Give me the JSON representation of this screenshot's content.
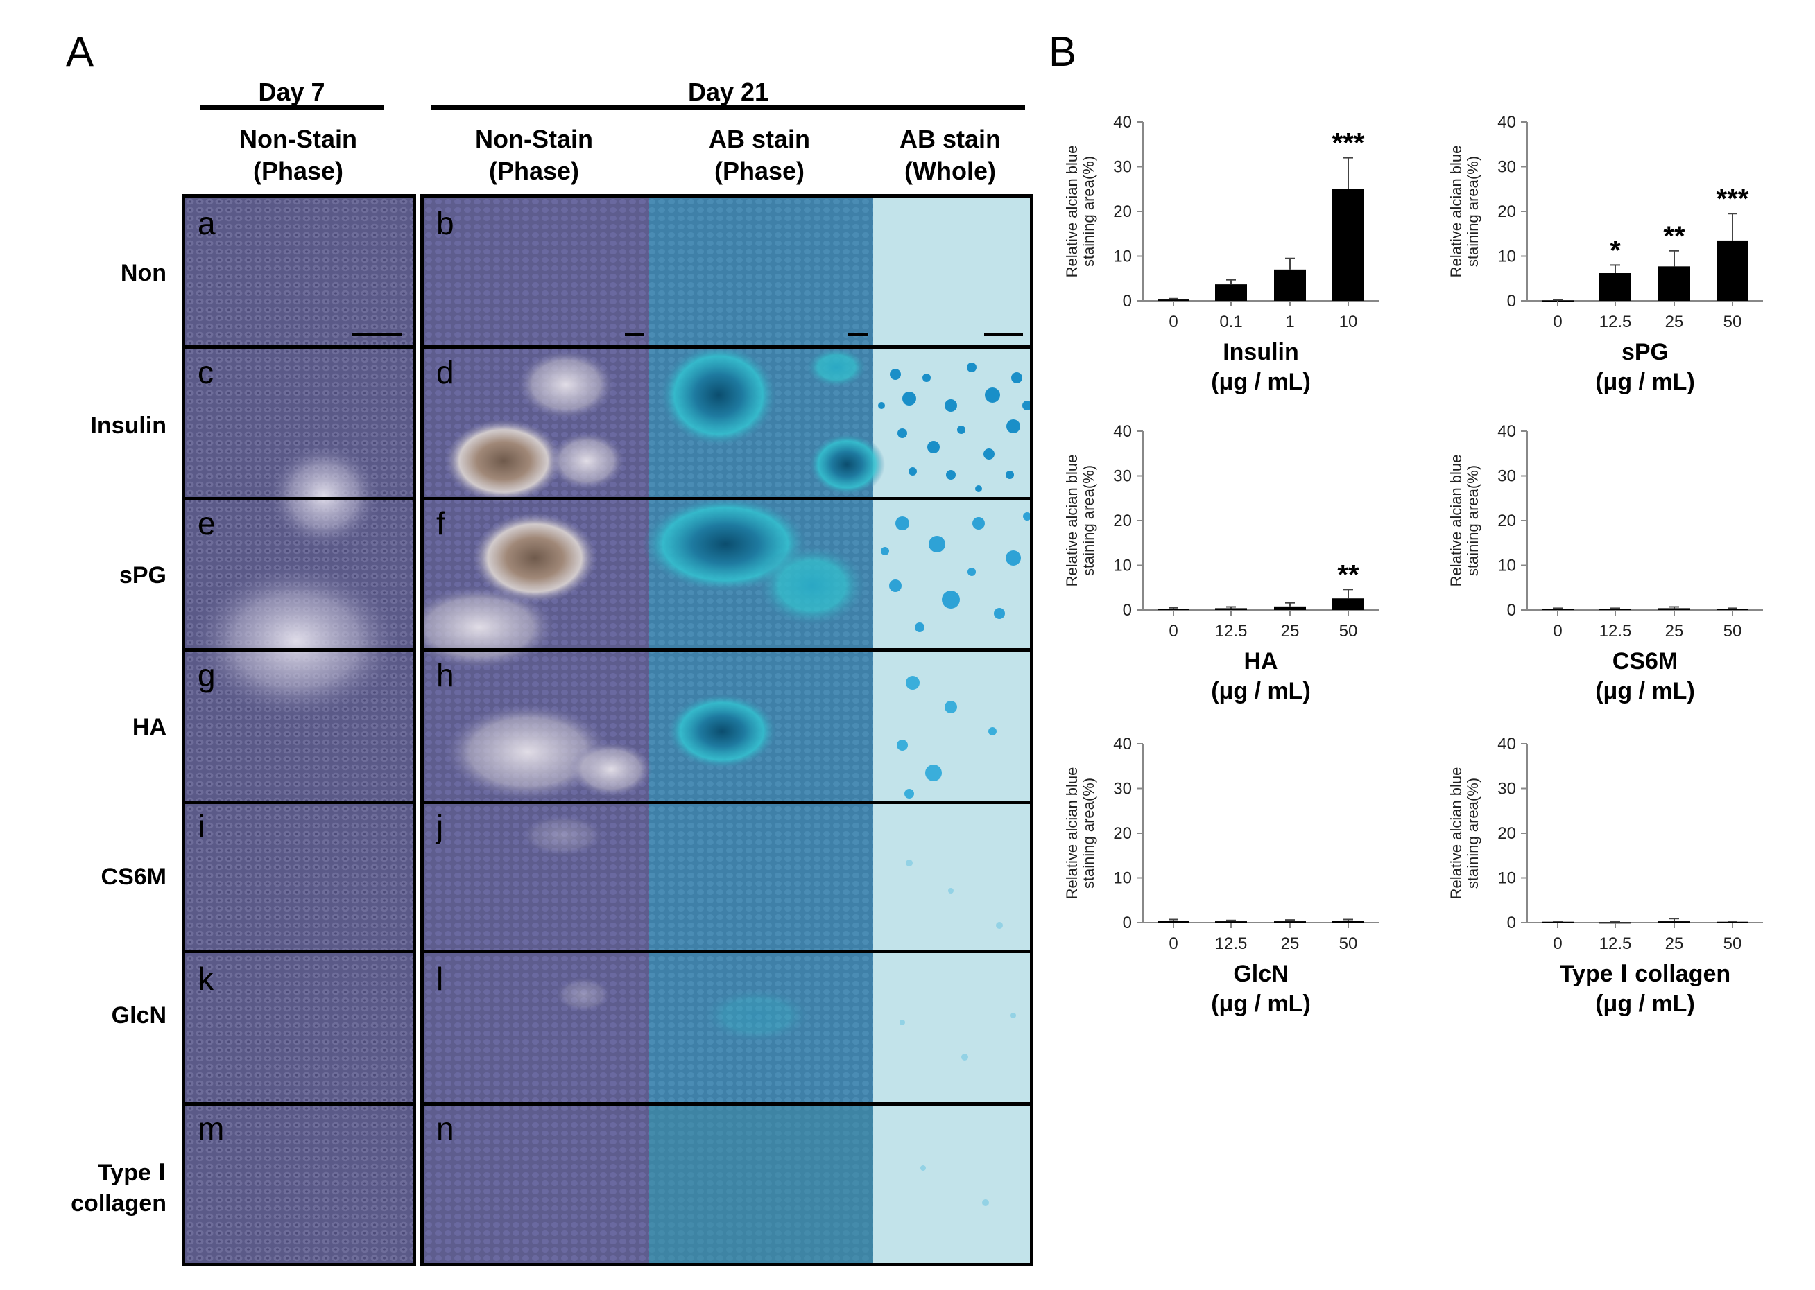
{
  "panel_a": {
    "letter": "A",
    "day7_header": "Day 7",
    "day21_header": "Day 21",
    "col_headers": [
      {
        "line1": "Non-Stain",
        "line2": "(Phase)"
      },
      {
        "line1": "Non-Stain",
        "line2": "(Phase)"
      },
      {
        "line1": "AB stain",
        "line2": "(Phase)"
      },
      {
        "line1": "AB stain",
        "line2": "(Whole)"
      }
    ],
    "rows": [
      {
        "label": "Non",
        "left_letter": "a",
        "right_letter": "b"
      },
      {
        "label": "Insulin",
        "left_letter": "c",
        "right_letter": "d"
      },
      {
        "label": "sPG",
        "left_letter": "e",
        "right_letter": "f"
      },
      {
        "label": "HA",
        "left_letter": "g",
        "right_letter": "h"
      },
      {
        "label": "CS6M",
        "left_letter": "i",
        "right_letter": "j"
      },
      {
        "label": "GlcN",
        "left_letter": "k",
        "right_letter": "l"
      },
      {
        "label": "Type Ⅰ",
        "label2": "collagen",
        "left_letter": "m",
        "right_letter": "n"
      }
    ],
    "colors": {
      "phase": "#5e5d8c",
      "ab_phase": "#3d7fa6",
      "ab_whole": "#bfe3ea",
      "blue_spot": "#1a8fc8",
      "light_spot": "#d8d4df",
      "brown_spot": "#7a6555"
    }
  },
  "panel_b": {
    "letter": "B"
  },
  "chart_data": [
    {
      "type": "bar",
      "categories": [
        "0",
        "0.1",
        "1",
        "10"
      ],
      "values": [
        0.3,
        3.7,
        7.0,
        25.0
      ],
      "errors": [
        0.2,
        1.0,
        2.5,
        7.0
      ],
      "significance": [
        "",
        "",
        "",
        "***"
      ],
      "xlabel": "Insulin",
      "xlabel_unit": "(μg / mL)",
      "ylabel_line1": "Relative alcian blue",
      "ylabel_line2": "staining area(%)",
      "ylim": [
        0,
        40
      ],
      "yticks": [
        0,
        10,
        20,
        30,
        40
      ]
    },
    {
      "type": "bar",
      "categories": [
        "0",
        "12.5",
        "25",
        "50"
      ],
      "values": [
        0.1,
        6.2,
        7.7,
        13.5
      ],
      "errors": [
        0.1,
        1.8,
        3.5,
        6.0
      ],
      "significance": [
        "",
        "*",
        "**",
        "***"
      ],
      "xlabel": "sPG",
      "xlabel_unit": "(μg / mL)",
      "ylabel_line1": "Relative alcian blue",
      "ylabel_line2": "staining area(%)",
      "ylim": [
        0,
        40
      ],
      "yticks": [
        0,
        10,
        20,
        30,
        40
      ]
    },
    {
      "type": "bar",
      "categories": [
        "0",
        "12.5",
        "25",
        "50"
      ],
      "values": [
        0.3,
        0.4,
        0.8,
        2.6
      ],
      "errors": [
        0.2,
        0.3,
        0.8,
        2.0
      ],
      "significance": [
        "",
        "",
        "",
        "**"
      ],
      "xlabel": "HA",
      "xlabel_unit": "(μg / mL)",
      "ylabel_line1": "Relative alcian blue",
      "ylabel_line2": "staining area(%)",
      "ylim": [
        0,
        40
      ],
      "yticks": [
        0,
        10,
        20,
        30,
        40
      ]
    },
    {
      "type": "bar",
      "categories": [
        "0",
        "12.5",
        "25",
        "50"
      ],
      "values": [
        0.3,
        0.3,
        0.4,
        0.3
      ],
      "errors": [
        0.1,
        0.1,
        0.3,
        0.1
      ],
      "significance": [
        "",
        "",
        "",
        ""
      ],
      "xlabel": "CS6M",
      "xlabel_unit": "(μg / mL)",
      "ylabel_line1": "Relative alcian blue",
      "ylabel_line2": "staining area(%)",
      "ylim": [
        0,
        40
      ],
      "yticks": [
        0,
        10,
        20,
        30,
        40
      ]
    },
    {
      "type": "bar",
      "categories": [
        "0",
        "12.5",
        "25",
        "50"
      ],
      "values": [
        0.4,
        0.3,
        0.3,
        0.4
      ],
      "errors": [
        0.3,
        0.2,
        0.3,
        0.3
      ],
      "significance": [
        "",
        "",
        "",
        ""
      ],
      "xlabel": "GlcN",
      "xlabel_unit": "(μg / mL)",
      "ylabel_line1": "Relative alcian blue",
      "ylabel_line2": "staining area(%)",
      "ylim": [
        0,
        40
      ],
      "yticks": [
        0,
        10,
        20,
        30,
        40
      ]
    },
    {
      "type": "bar",
      "categories": [
        "0",
        "12.5",
        "25",
        "50"
      ],
      "values": [
        0.2,
        0.1,
        0.3,
        0.2
      ],
      "errors": [
        0.1,
        0.1,
        0.6,
        0.1
      ],
      "significance": [
        "",
        "",
        "",
        ""
      ],
      "xlabel": "Type Ⅰ collagen",
      "xlabel_unit": "(μg / mL)",
      "ylabel_line1": "Relative alcian blue",
      "ylabel_line2": "staining area(%)",
      "ylim": [
        0,
        40
      ],
      "yticks": [
        0,
        10,
        20,
        30,
        40
      ]
    }
  ]
}
